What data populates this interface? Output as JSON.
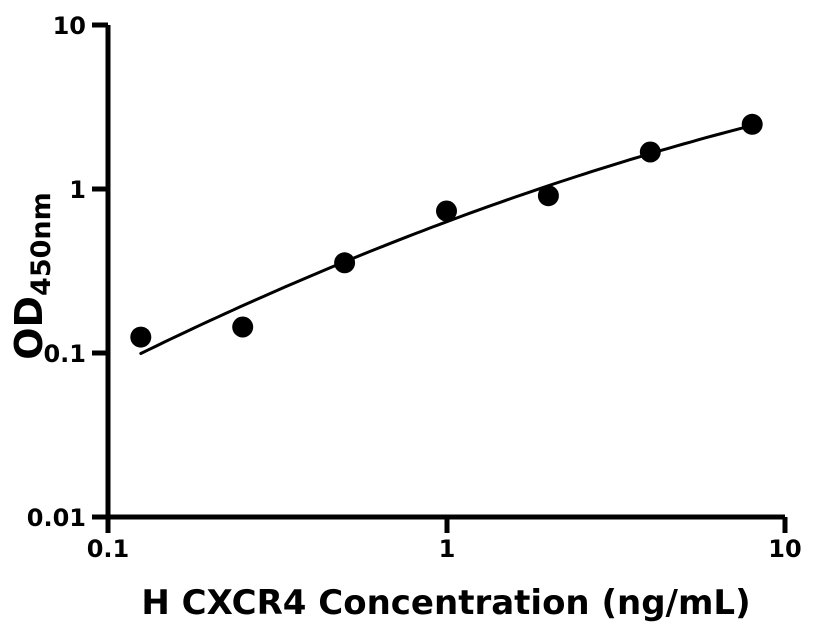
{
  "chart_data": {
    "type": "scatter",
    "xlabel": "H CXCR4 Concentration (ng/mL)",
    "ylabel": {
      "main": "OD",
      "sub": "450nm"
    },
    "xscale": "log",
    "yscale": "log",
    "xlim": [
      0.1,
      10
    ],
    "ylim": [
      0.01,
      10
    ],
    "grid": false,
    "legend": false,
    "x": [
      0.125,
      0.25,
      0.5,
      1,
      2,
      4,
      8
    ],
    "y": [
      0.125,
      0.144,
      0.355,
      0.734,
      0.91,
      1.68,
      2.48
    ],
    "x_ticks": [
      {
        "value": 0.1,
        "label": "0.1"
      },
      {
        "value": 1,
        "label": "1"
      },
      {
        "value": 10,
        "label": "10"
      }
    ],
    "y_ticks": [
      {
        "value": 10,
        "label": "10"
      },
      {
        "value": 1,
        "label": "1"
      },
      {
        "value": 0.1,
        "label": "0.1"
      },
      {
        "value": 0.01,
        "label": "0.01"
      }
    ],
    "fit_curve": {
      "type": "quadratic_loglog",
      "coefficients": {
        "a": -0.2,
        "b": 0.77,
        "c": -0.132
      },
      "x_range": [
        0.125,
        8
      ],
      "stroke_width_px": 3
    },
    "marker": {
      "shape": "circle",
      "radius_px": 10.5,
      "color": "#000000"
    },
    "colors": {
      "axis": "#000000",
      "text": "#000000",
      "curve": "#000000",
      "background": "#ffffff"
    }
  }
}
